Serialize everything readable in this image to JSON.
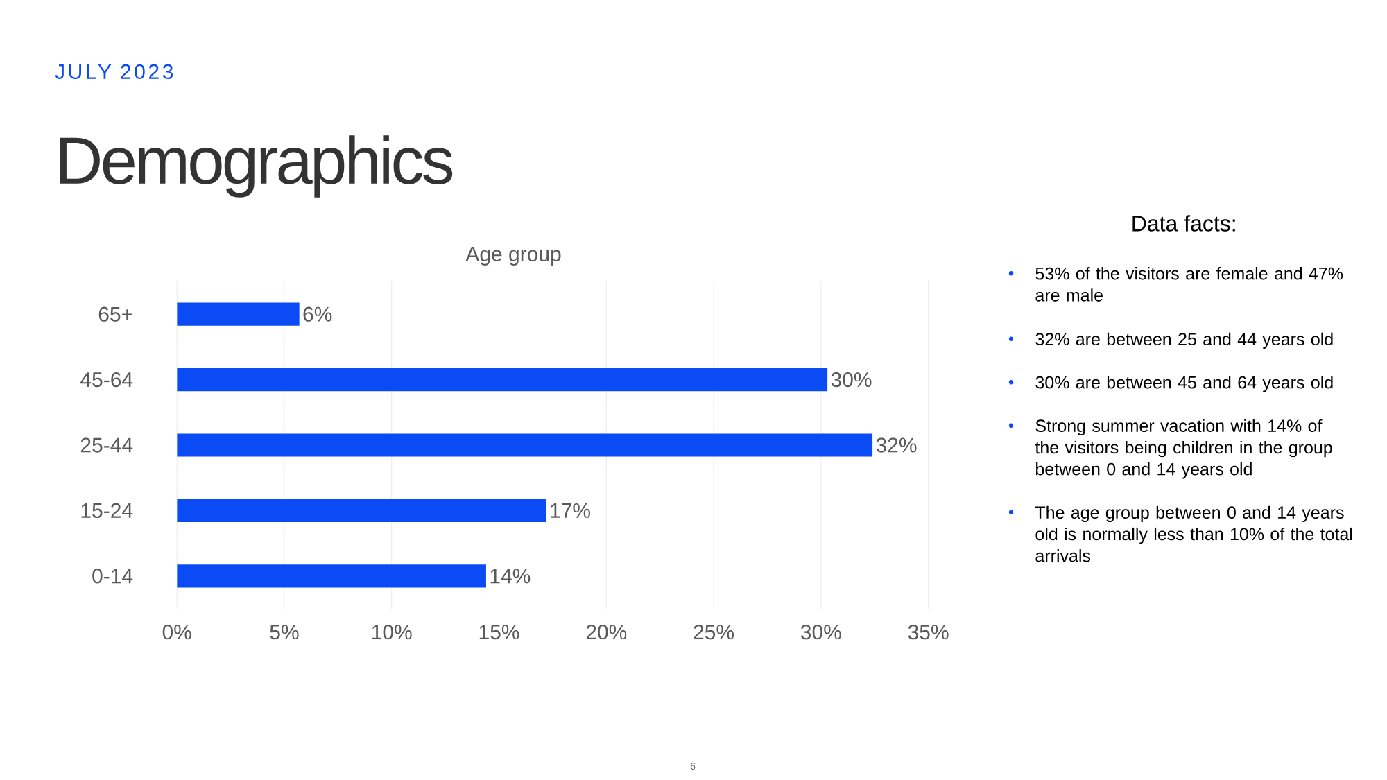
{
  "chart_data": {
    "type": "bar",
    "orientation": "horizontal",
    "title": "Demographics",
    "subtitle": "JULY 2023",
    "ylabel": "Age group",
    "categories": [
      "65+",
      "45-64",
      "25-44",
      "15-24",
      "0-14"
    ],
    "values": [
      5.7,
      30.3,
      32.4,
      17.2,
      14.4
    ],
    "value_labels": [
      "6%",
      "30%",
      "32%",
      "17%",
      "14%"
    ],
    "color": "#0a4bf5",
    "xlim": [
      0,
      35
    ],
    "xticks": [
      {
        "value": 0,
        "label": "0%"
      },
      {
        "value": 5,
        "label": "5%"
      },
      {
        "value": 10,
        "label": "10%"
      },
      {
        "value": 15,
        "label": "15%"
      },
      {
        "value": 20,
        "label": "20%"
      },
      {
        "value": 25,
        "label": "25%"
      },
      {
        "value": 30,
        "label": "30%"
      },
      {
        "value": 35,
        "label": "35%"
      }
    ],
    "grid": "x",
    "annotations": [
      "Data facts:",
      "53% of the visitors are female and 47% are male",
      "32% are between 25 and 44 years old",
      "30% are between 45 and 64 years old",
      "Strong summer vacation with 14% of the visitors being children in the group between 0 and 14 years old",
      "The age group between 0 and 14 years old is normally less than 10% of the total arrivals",
      "6"
    ]
  }
}
